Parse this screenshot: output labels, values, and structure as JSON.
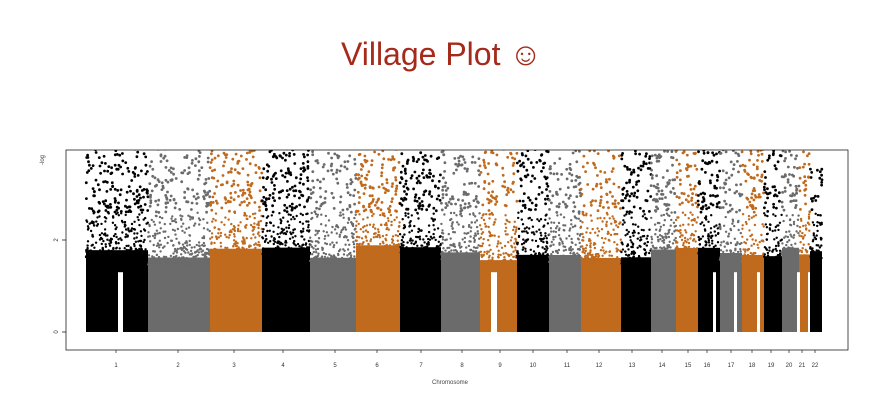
{
  "title": "Village Plot ☺",
  "chart_data": {
    "type": "scatter",
    "title": "Village Plot ☺",
    "xlabel": "Chromosome",
    "ylabel": "-log",
    "ylim": [
      0,
      4
    ],
    "y_ticks": [
      0,
      2
    ],
    "grid": false,
    "legend": "none",
    "colors": {
      "black": "#000000",
      "gray": "#6b6b6b",
      "orange": "#c06a1e",
      "title": "#a52a1a"
    },
    "chromosomes": [
      {
        "label": "1",
        "color": "black"
      },
      {
        "label": "2",
        "color": "gray"
      },
      {
        "label": "3",
        "color": "orange"
      },
      {
        "label": "4",
        "color": "black"
      },
      {
        "label": "5",
        "color": "gray"
      },
      {
        "label": "6",
        "color": "orange"
      },
      {
        "label": "7",
        "color": "black"
      },
      {
        "label": "8",
        "color": "gray"
      },
      {
        "label": "9",
        "color": "orange"
      },
      {
        "label": "10",
        "color": "black"
      },
      {
        "label": "11",
        "color": "gray"
      },
      {
        "label": "12",
        "color": "orange"
      },
      {
        "label": "13",
        "color": "black"
      },
      {
        "label": "14",
        "color": "gray"
      },
      {
        "label": "15",
        "color": "orange"
      },
      {
        "label": "16",
        "color": "black"
      },
      {
        "label": "17",
        "color": "gray"
      },
      {
        "label": "18",
        "color": "orange"
      },
      {
        "label": "19",
        "color": "black"
      },
      {
        "label": "20",
        "color": "gray"
      },
      {
        "label": "21",
        "color": "orange"
      },
      {
        "label": "22",
        "color": "black"
      }
    ]
  }
}
